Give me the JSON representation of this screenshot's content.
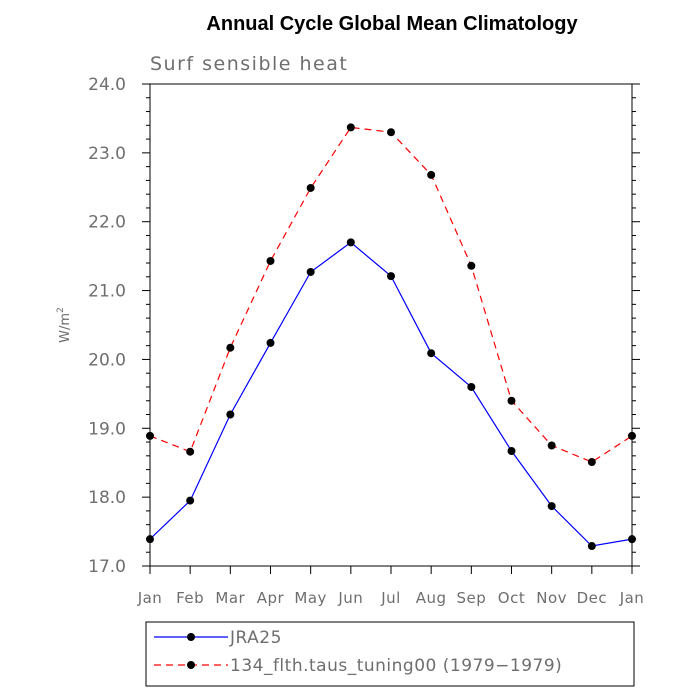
{
  "chart_data": {
    "type": "line",
    "title": "Annual Cycle Global Mean Climatology",
    "subtitle": "Surf sensible heat",
    "ylabel": "W/m",
    "ylabel_sup": "2",
    "ylim": [
      17.0,
      24.0
    ],
    "yticks": [
      "17.0",
      "18.0",
      "19.0",
      "20.0",
      "21.0",
      "22.0",
      "23.0",
      "24.0"
    ],
    "categories": [
      "Jan",
      "Feb",
      "Mar",
      "Apr",
      "May",
      "Jun",
      "Jul",
      "Aug",
      "Sep",
      "Oct",
      "Nov",
      "Dec",
      "Jan"
    ],
    "series": [
      {
        "name": "JRA25",
        "color": "#0000ff",
        "dash": "solid",
        "values": [
          17.39,
          17.95,
          19.2,
          20.24,
          21.27,
          21.7,
          21.21,
          20.09,
          19.6,
          18.67,
          17.87,
          17.29,
          17.39
        ]
      },
      {
        "name": "134_flth.taus_tuning00 (1979−1979)",
        "color": "#ff0000",
        "dash": "dashed",
        "values": [
          18.89,
          18.66,
          20.17,
          21.43,
          22.49,
          23.37,
          23.3,
          22.68,
          21.36,
          19.4,
          18.75,
          18.51,
          18.89
        ]
      }
    ],
    "grid": false,
    "legend_position": "bottom"
  }
}
